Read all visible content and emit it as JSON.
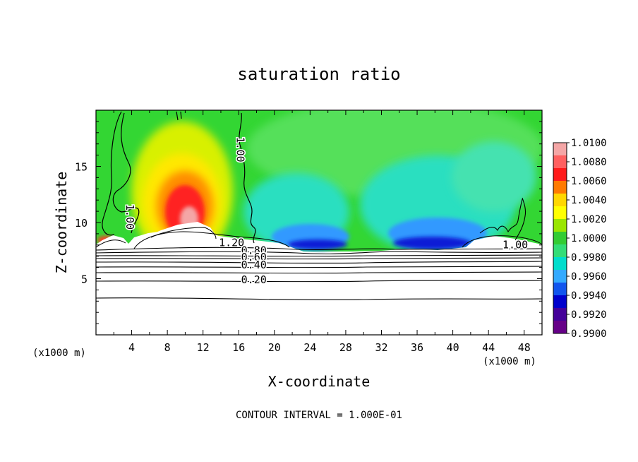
{
  "chart_data": {
    "type": "heatmap",
    "title": "saturation ratio",
    "xlabel": "X-coordinate",
    "ylabel": "Z-coordinate",
    "x_unit_left": "(x1000 m)",
    "x_unit_right": "(x1000 m)",
    "footer": "CONTOUR INTERVAL = 1.000E-01",
    "xlim": [
      0,
      50
    ],
    "ylim": [
      0,
      20
    ],
    "x_ticks": [
      4,
      8,
      12,
      16,
      20,
      24,
      28,
      32,
      36,
      40,
      44,
      48
    ],
    "x_tick_labels": [
      "4",
      "8",
      "12",
      "16",
      "20",
      "24",
      "28",
      "32",
      "36",
      "40",
      "44",
      "48"
    ],
    "y_ticks": [
      5,
      10,
      15
    ],
    "y_tick_labels": [
      "5",
      "10",
      "15"
    ],
    "colorbar": {
      "min": 0.99,
      "max": 1.01,
      "tick_labels": [
        "1.0100",
        "1.0080",
        "1.0060",
        "1.0040",
        "1.0020",
        "1.0000",
        "0.9980",
        "0.9960",
        "0.9940",
        "0.9920",
        "0.9900"
      ],
      "colors": [
        "#f4a6a6",
        "#ff6060",
        "#ff1a1a",
        "#ff7a00",
        "#ffd700",
        "#ffff00",
        "#9ae600",
        "#33cc33",
        "#33dd77",
        "#00ddcc",
        "#33aaff",
        "#1155ee",
        "#0000cc",
        "#440099",
        "#660088"
      ]
    },
    "contour_labels": [
      {
        "text": "1.00",
        "x": 15.8,
        "z": 16.5,
        "rotate": true
      },
      {
        "text": "1.00",
        "x": 3.4,
        "z": 10.5,
        "rotate": true
      },
      {
        "text": "1.00",
        "x": 47.0,
        "z": 7.7,
        "rotate": false
      },
      {
        "text": "1.20",
        "x": 15.2,
        "z": 7.9,
        "rotate": false
      },
      {
        "text": "0.80",
        "x": 17.7,
        "z": 7.2,
        "rotate": false
      },
      {
        "text": "0.60",
        "x": 17.7,
        "z": 6.6,
        "rotate": false
      },
      {
        "text": "0.40",
        "x": 17.7,
        "z": 5.9,
        "rotate": false
      },
      {
        "text": "0.20",
        "x": 17.7,
        "z": 4.6,
        "rotate": false
      }
    ],
    "contour_levels_z": [
      3.2,
      4.8,
      5.6,
      6.1,
      6.5,
      6.85,
      7.15,
      7.45
    ],
    "features": [
      {
        "name": "saturation maximum",
        "x": 10,
        "z": 11,
        "value": 1.0095
      },
      {
        "name": "saturation minimum west",
        "x": 24,
        "z": 8,
        "value": 0.992
      },
      {
        "name": "saturation minimum east",
        "x": 37,
        "z": 8,
        "value": 0.992
      }
    ]
  }
}
